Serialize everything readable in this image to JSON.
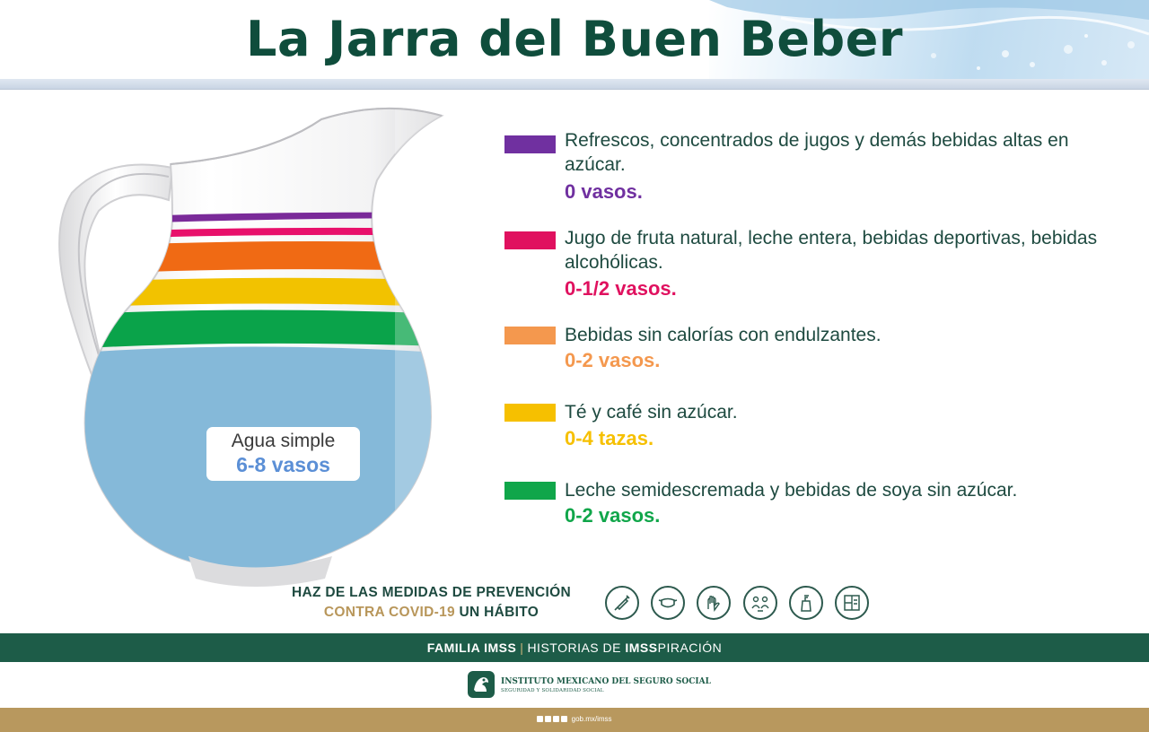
{
  "header": {
    "title": "La Jarra del Buen Beber"
  },
  "jug": {
    "water_label_line1": "Agua simple",
    "water_label_line2": "6-8 vasos",
    "colors": {
      "water": "#85b9d9",
      "green": "#0aa34a",
      "yellow": "#f2c200",
      "orange": "#f06a14",
      "pink": "#e8106b",
      "purple": "#7a2a99"
    }
  },
  "legend": [
    {
      "color": "#7030a0",
      "description": "Refrescos, concentrados de jugos y demás bebidas altas en azúcar.",
      "amount": "0 vasos."
    },
    {
      "color": "#e0115f",
      "description": "Jugo de fruta natural, leche entera, bebidas deportivas, bebidas alcohólicas.",
      "amount": "0-1/2 vasos."
    },
    {
      "color": "#f4984e",
      "description": "Bebidas sin calorías con endulzantes.",
      "amount": "0-2 vasos."
    },
    {
      "color": "#f6c000",
      "description": "Té y café sin azúcar.",
      "amount": "0-4 tazas."
    },
    {
      "color": "#10a64a",
      "description": "Leche semidescremada y bebidas de soya sin azúcar.",
      "amount": "0-2 vasos."
    }
  ],
  "prevention": {
    "line1": "HAZ DE LAS MEDIDAS DE PREVENCIÓN",
    "line2_a": "CONTRA COVID-19",
    "line2_b": "UN HÁBITO",
    "icons": [
      "vaccine-icon",
      "face-mask-icon",
      "hand-washing-icon",
      "social-distance-icon",
      "hand-sanitizer-icon",
      "ventilation-icon"
    ]
  },
  "footer": {
    "familia": "FAMILIA IMSS",
    "separator": "|",
    "historias": "HISTORIAS DE",
    "imss_bold": "IMSS",
    "piracion": "PIRACIÓN",
    "institute": "INSTITUTO MEXICANO DEL SEGURO SOCIAL",
    "institute_sub": "SEGURIDAD Y SOLIDARIDAD SOCIAL",
    "social_handle": "gob.mx/imss"
  }
}
